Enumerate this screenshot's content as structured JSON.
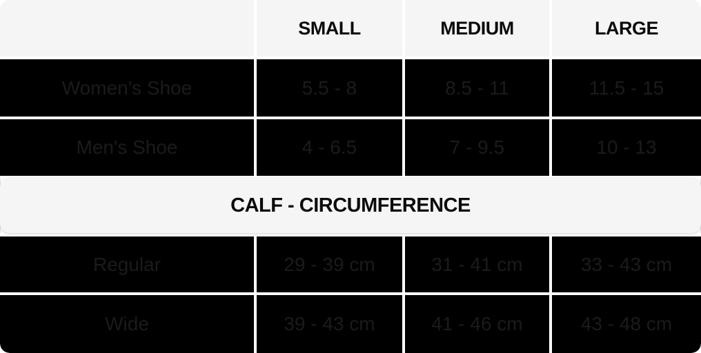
{
  "colors": {
    "grid": "#ffffff",
    "cell_bg": "#000000",
    "cell_text": "#1b1b1b",
    "header_bg": "#f5f5f5",
    "header_text": "#0b0b0b"
  },
  "header": {
    "col0": "",
    "col1": "SMALL",
    "col2": "MEDIUM",
    "col3": "LARGE"
  },
  "banner": {
    "title": "CALF - CIRCUMFERENCE"
  },
  "rows": [
    {
      "label": "Women's Shoe",
      "small": "5.5 - 8",
      "medium": "8.5 - 11",
      "large": "11.5 - 15"
    },
    {
      "label": "Men's Shoe",
      "small": "4 - 6.5",
      "medium": "7 - 9.5",
      "large": "10 - 13"
    },
    {
      "label": "Regular",
      "small": "29 - 39 cm",
      "medium": "31 - 41 cm",
      "large": "33 - 43 cm"
    },
    {
      "label": "Wide",
      "small": "39 - 43 cm",
      "medium": "41 - 46 cm",
      "large": "43 - 48 cm"
    }
  ],
  "chart_data": {
    "type": "table",
    "columns": [
      "",
      "SMALL",
      "MEDIUM",
      "LARGE"
    ],
    "sections": [
      {
        "title": "",
        "rows": [
          [
            "Women's Shoe",
            "5.5 - 8",
            "8.5 - 11",
            "11.5 - 15"
          ],
          [
            "Men's Shoe",
            "4 - 6.5",
            "7 - 9.5",
            "10 - 13"
          ]
        ]
      },
      {
        "title": "CALF - CIRCUMFERENCE",
        "rows": [
          [
            "Regular",
            "29 - 39 cm",
            "31 - 41 cm",
            "33 - 43 cm"
          ],
          [
            "Wide",
            "39 - 43 cm",
            "41 - 46 cm",
            "43 - 48 cm"
          ]
        ]
      }
    ]
  }
}
